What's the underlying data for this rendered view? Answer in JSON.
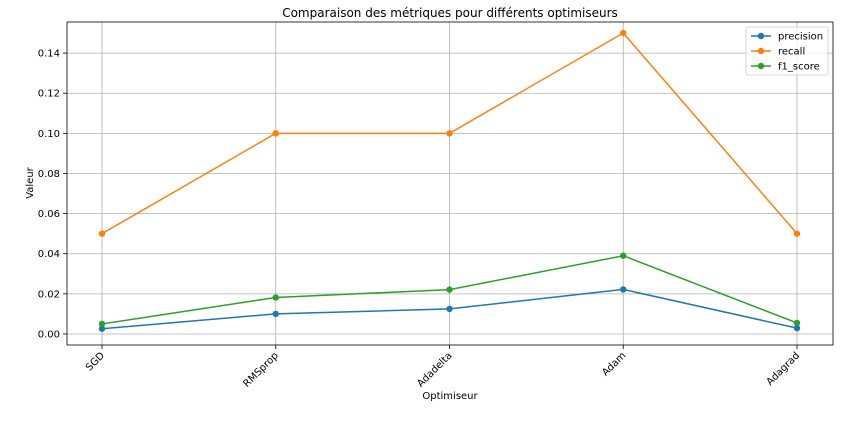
{
  "chart_data": {
    "type": "line",
    "title": "Comparaison des métriques pour différents optimiseurs",
    "xlabel": "Optimiseur",
    "ylabel": "Valeur",
    "categories": [
      "SGD",
      "RMSprop",
      "Adadelta",
      "Adam",
      "Adagrad"
    ],
    "ylim": [
      -0.0055,
      0.1555
    ],
    "yticks": [
      "0.00",
      "0.02",
      "0.04",
      "0.06",
      "0.08",
      "0.10",
      "0.12",
      "0.14"
    ],
    "grid": true,
    "legend_position": "top-right",
    "series": [
      {
        "name": "precision",
        "color": "#1f77b4",
        "values": [
          0.0026,
          0.01,
          0.0125,
          0.0222,
          0.0029
        ]
      },
      {
        "name": "recall",
        "color": "#ff7f0e",
        "values": [
          0.05,
          0.1,
          0.1,
          0.15,
          0.05
        ]
      },
      {
        "name": "f1_score",
        "color": "#2ca02c",
        "values": [
          0.005,
          0.0182,
          0.0221,
          0.039,
          0.0055
        ]
      }
    ]
  }
}
